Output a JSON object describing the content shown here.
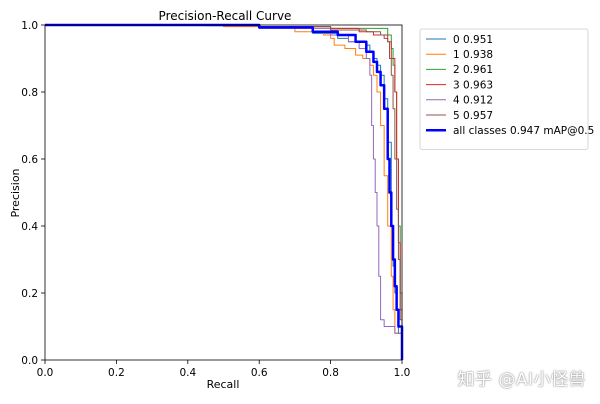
{
  "chart_data": {
    "type": "line",
    "title": "Precision-Recall Curve",
    "xlabel": "Recall",
    "ylabel": "Precision",
    "xlim": [
      0.0,
      1.0
    ],
    "ylim": [
      0.0,
      1.0
    ],
    "x_ticks": [
      "0.0",
      "0.2",
      "0.4",
      "0.6",
      "0.8",
      "1.0"
    ],
    "y_ticks": [
      "0.0",
      "0.2",
      "0.4",
      "0.6",
      "0.8",
      "1.0"
    ],
    "legend_position": "outside-right-top",
    "series": [
      {
        "name": "0 0.951",
        "color": "#1f77b4",
        "width": 1,
        "points": [
          [
            0,
            1
          ],
          [
            0.4,
            1
          ],
          [
            0.45,
            0.998
          ],
          [
            0.6,
            0.99
          ],
          [
            0.75,
            0.975
          ],
          [
            0.82,
            0.96
          ],
          [
            0.85,
            0.95
          ],
          [
            0.87,
            0.95
          ],
          [
            0.9,
            0.94
          ],
          [
            0.91,
            0.92
          ],
          [
            0.92,
            0.9
          ],
          [
            0.93,
            0.88
          ],
          [
            0.94,
            0.85
          ],
          [
            0.95,
            0.78
          ],
          [
            0.96,
            0.65
          ],
          [
            0.97,
            0.4
          ],
          [
            0.975,
            0.28
          ],
          [
            0.98,
            0.2
          ],
          [
            0.985,
            0.15
          ],
          [
            0.99,
            0.08
          ],
          [
            1.0,
            0
          ]
        ]
      },
      {
        "name": "1 0.938",
        "color": "#ff7f0e",
        "width": 1,
        "points": [
          [
            0,
            1
          ],
          [
            0.4,
            1
          ],
          [
            0.5,
            0.995
          ],
          [
            0.7,
            0.98
          ],
          [
            0.78,
            0.97
          ],
          [
            0.8,
            0.96
          ],
          [
            0.81,
            0.94
          ],
          [
            0.84,
            0.93
          ],
          [
            0.87,
            0.91
          ],
          [
            0.89,
            0.9
          ],
          [
            0.91,
            0.88
          ],
          [
            0.92,
            0.85
          ],
          [
            0.93,
            0.8
          ],
          [
            0.94,
            0.7
          ],
          [
            0.95,
            0.55
          ],
          [
            0.96,
            0.4
          ],
          [
            0.97,
            0.25
          ],
          [
            0.975,
            0.15
          ],
          [
            0.98,
            0.08
          ],
          [
            1.0,
            0
          ]
        ]
      },
      {
        "name": "2 0.961",
        "color": "#2ca02c",
        "width": 1,
        "points": [
          [
            0,
            1
          ],
          [
            0.4,
            1
          ],
          [
            0.6,
            0.995
          ],
          [
            0.8,
            0.99
          ],
          [
            0.9,
            0.99
          ],
          [
            0.95,
            0.99
          ],
          [
            0.96,
            0.97
          ],
          [
            0.97,
            0.93
          ],
          [
            0.975,
            0.88
          ],
          [
            0.98,
            0.8
          ],
          [
            0.985,
            0.6
          ],
          [
            0.99,
            0.4
          ],
          [
            0.995,
            0.2
          ],
          [
            1.0,
            0
          ]
        ]
      },
      {
        "name": "3 0.963",
        "color": "#d62728",
        "width": 1,
        "points": [
          [
            0,
            1
          ],
          [
            0.4,
            1
          ],
          [
            0.6,
            0.995
          ],
          [
            0.8,
            0.99
          ],
          [
            0.88,
            0.98
          ],
          [
            0.92,
            0.97
          ],
          [
            0.95,
            0.97
          ],
          [
            0.96,
            0.95
          ],
          [
            0.97,
            0.9
          ],
          [
            0.98,
            0.8
          ],
          [
            0.985,
            0.6
          ],
          [
            0.99,
            0.35
          ],
          [
            0.995,
            0.15
          ],
          [
            1.0,
            0
          ]
        ]
      },
      {
        "name": "4 0.912",
        "color": "#9467bd",
        "width": 1,
        "points": [
          [
            0,
            1
          ],
          [
            0.4,
            1
          ],
          [
            0.6,
            0.99
          ],
          [
            0.8,
            0.97
          ],
          [
            0.85,
            0.95
          ],
          [
            0.88,
            0.93
          ],
          [
            0.9,
            0.9
          ],
          [
            0.91,
            0.85
          ],
          [
            0.915,
            0.7
          ],
          [
            0.92,
            0.6
          ],
          [
            0.925,
            0.5
          ],
          [
            0.93,
            0.4
          ],
          [
            0.935,
            0.25
          ],
          [
            0.94,
            0.12
          ],
          [
            0.95,
            0.1
          ],
          [
            0.97,
            0.1
          ],
          [
            0.98,
            0.08
          ],
          [
            1.0,
            0
          ]
        ]
      },
      {
        "name": "5 0.957",
        "color": "#8c564b",
        "width": 1,
        "points": [
          [
            0,
            1
          ],
          [
            0.4,
            1
          ],
          [
            0.6,
            0.995
          ],
          [
            0.8,
            0.985
          ],
          [
            0.9,
            0.98
          ],
          [
            0.94,
            0.97
          ],
          [
            0.95,
            0.96
          ],
          [
            0.96,
            0.95
          ],
          [
            0.965,
            0.9
          ],
          [
            0.97,
            0.85
          ],
          [
            0.975,
            0.75
          ],
          [
            0.98,
            0.6
          ],
          [
            0.985,
            0.45
          ],
          [
            0.99,
            0.3
          ],
          [
            0.995,
            0.12
          ],
          [
            1.0,
            0
          ]
        ]
      },
      {
        "name": "all classes 0.947 mAP@0.5",
        "color": "#0000ff",
        "width": 2.5,
        "points": [
          [
            0,
            1
          ],
          [
            0.4,
            1
          ],
          [
            0.6,
            0.993
          ],
          [
            0.75,
            0.98
          ],
          [
            0.82,
            0.97
          ],
          [
            0.87,
            0.95
          ],
          [
            0.9,
            0.92
          ],
          [
            0.92,
            0.89
          ],
          [
            0.93,
            0.86
          ],
          [
            0.94,
            0.82
          ],
          [
            0.95,
            0.75
          ],
          [
            0.96,
            0.6
          ],
          [
            0.965,
            0.5
          ],
          [
            0.97,
            0.4
          ],
          [
            0.975,
            0.3
          ],
          [
            0.98,
            0.22
          ],
          [
            0.985,
            0.15
          ],
          [
            0.99,
            0.1
          ],
          [
            1.0,
            0
          ]
        ]
      }
    ]
  },
  "watermark": "知乎 @AI小怪兽"
}
